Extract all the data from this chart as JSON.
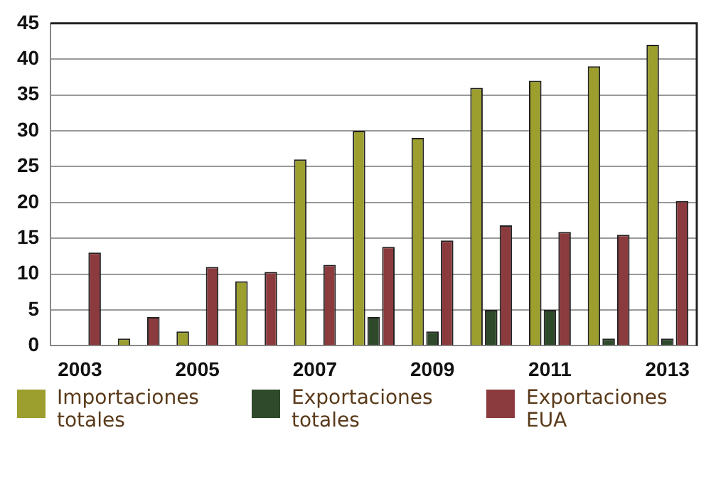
{
  "chart_data": {
    "type": "bar",
    "categories": [
      "2003",
      null,
      "2005",
      null,
      "2007",
      null,
      "2009",
      null,
      "2011",
      null,
      "2013"
    ],
    "series": [
      {
        "name": "Importaciones totales",
        "color": "#9c9e2e",
        "values": [
          null,
          1,
          2,
          9,
          26,
          30,
          29,
          36,
          37,
          39,
          42
        ]
      },
      {
        "name": "Exportaciones totales",
        "color": "#2e4a2a",
        "values": [
          null,
          null,
          null,
          null,
          null,
          4,
          2,
          5,
          5,
          1,
          1
        ]
      },
      {
        "name": "Exportaciones EUA",
        "color": "#8b3a3e",
        "values": [
          13,
          4,
          11,
          10.3,
          11.3,
          13.8,
          14.7,
          16.8,
          15.9,
          15.5,
          20.2
        ]
      }
    ],
    "ylim": [
      0,
      45
    ],
    "yticks": [
      0,
      5,
      10,
      15,
      20,
      25,
      30,
      35,
      40,
      45
    ],
    "grid": "y",
    "legend": "bottom"
  }
}
